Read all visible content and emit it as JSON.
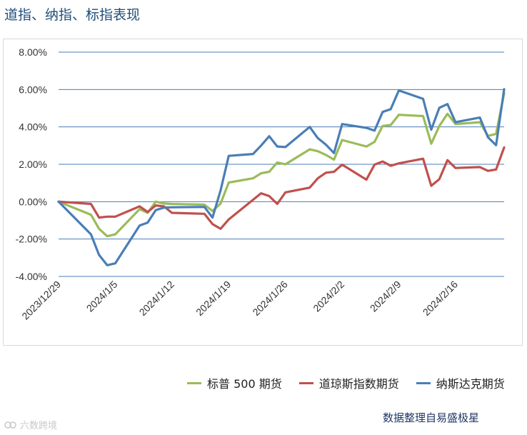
{
  "page": {
    "title": "道指、纳指、标指表现",
    "source_note": "数据整理自易盛极星",
    "watermark": "六数跨境"
  },
  "chart_data": {
    "type": "line",
    "title": "道指、纳指、标指表现",
    "xlabel": "",
    "ylabel": "",
    "ylim": [
      -0.04,
      0.08
    ],
    "yticks": [
      {
        "value": -0.04,
        "label": "-4.00%"
      },
      {
        "value": -0.02,
        "label": "-2.00%"
      },
      {
        "value": 0.0,
        "label": "0.00%"
      },
      {
        "value": 0.02,
        "label": "2.00%"
      },
      {
        "value": 0.04,
        "label": "4.00%"
      },
      {
        "value": 0.06,
        "label": "6.00%"
      },
      {
        "value": 0.08,
        "label": "8.00%"
      }
    ],
    "x_range": [
      "2023/12/29",
      "2024/2/22"
    ],
    "xticks": [
      "2023/12/29",
      "2024/1/5",
      "2024/1/12",
      "2024/1/19",
      "2024/1/26",
      "2024/2/2",
      "2024/2/9",
      "2024/2/16"
    ],
    "grid": true,
    "legend_position": "bottom",
    "series": [
      {
        "name": "标普 500 期货",
        "color": "#9bbb59",
        "points": [
          [
            "2023/12/29",
            0.0
          ],
          [
            "2024/1/2",
            -0.007
          ],
          [
            "2024/1/3",
            -0.0145
          ],
          [
            "2024/1/4",
            -0.0185
          ],
          [
            "2024/1/5",
            -0.0175
          ],
          [
            "2024/1/8",
            -0.004
          ],
          [
            "2024/1/9",
            -0.006
          ],
          [
            "2024/1/10",
            0.0
          ],
          [
            "2024/1/11",
            -0.001
          ],
          [
            "2024/1/12",
            -0.0012
          ],
          [
            "2024/1/16",
            -0.0016
          ],
          [
            "2024/1/17",
            -0.005
          ],
          [
            "2024/1/18",
            -0.001
          ],
          [
            "2024/1/19",
            0.0102
          ],
          [
            "2024/1/22",
            0.0125
          ],
          [
            "2024/1/23",
            0.0152
          ],
          [
            "2024/1/24",
            0.016
          ],
          [
            "2024/1/25",
            0.021
          ],
          [
            "2024/1/26",
            0.02
          ],
          [
            "2024/1/29",
            0.028
          ],
          [
            "2024/1/30",
            0.027
          ],
          [
            "2024/1/31",
            0.025
          ],
          [
            "2024/2/1",
            0.0225
          ],
          [
            "2024/2/2",
            0.033
          ],
          [
            "2024/2/5",
            0.0295
          ],
          [
            "2024/2/6",
            0.032
          ],
          [
            "2024/2/7",
            0.0405
          ],
          [
            "2024/2/8",
            0.041
          ],
          [
            "2024/2/9",
            0.0465
          ],
          [
            "2024/2/12",
            0.0458
          ],
          [
            "2024/2/13",
            0.031
          ],
          [
            "2024/2/14",
            0.0405
          ],
          [
            "2024/2/15",
            0.047
          ],
          [
            "2024/2/16",
            0.0415
          ],
          [
            "2024/2/19",
            0.0425
          ],
          [
            "2024/2/20",
            0.0352
          ],
          [
            "2024/2/21",
            0.0362
          ],
          [
            "2024/2/22",
            0.058
          ]
        ]
      },
      {
        "name": "道琼斯指数期货",
        "color": "#c0504d",
        "points": [
          [
            "2023/12/29",
            0.0
          ],
          [
            "2024/1/2",
            -0.0012
          ],
          [
            "2024/1/3",
            -0.0085
          ],
          [
            "2024/1/4",
            -0.008
          ],
          [
            "2024/1/5",
            -0.008
          ],
          [
            "2024/1/8",
            -0.0025
          ],
          [
            "2024/1/9",
            -0.0055
          ],
          [
            "2024/1/10",
            -0.002
          ],
          [
            "2024/1/11",
            -0.0025
          ],
          [
            "2024/1/12",
            -0.006
          ],
          [
            "2024/1/16",
            -0.0065
          ],
          [
            "2024/1/17",
            -0.012
          ],
          [
            "2024/1/18",
            -0.0145
          ],
          [
            "2024/1/19",
            -0.0095
          ],
          [
            "2024/1/22",
            0.001
          ],
          [
            "2024/1/23",
            0.0045
          ],
          [
            "2024/1/24",
            0.003
          ],
          [
            "2024/1/25",
            -0.0012
          ],
          [
            "2024/1/26",
            0.005
          ],
          [
            "2024/1/29",
            0.0075
          ],
          [
            "2024/1/30",
            0.0125
          ],
          [
            "2024/1/31",
            0.0155
          ],
          [
            "2024/2/1",
            0.016
          ],
          [
            "2024/2/2",
            0.0198
          ],
          [
            "2024/2/5",
            0.0118
          ],
          [
            "2024/2/6",
            0.0198
          ],
          [
            "2024/2/7",
            0.0215
          ],
          [
            "2024/2/8",
            0.0192
          ],
          [
            "2024/2/9",
            0.0205
          ],
          [
            "2024/2/12",
            0.023
          ],
          [
            "2024/2/13",
            0.0085
          ],
          [
            "2024/2/14",
            0.012
          ],
          [
            "2024/2/15",
            0.0222
          ],
          [
            "2024/2/16",
            0.018
          ],
          [
            "2024/2/19",
            0.0185
          ],
          [
            "2024/2/20",
            0.0165
          ],
          [
            "2024/2/21",
            0.0172
          ],
          [
            "2024/2/22",
            0.029
          ]
        ]
      },
      {
        "name": "纳斯达克期货",
        "color": "#4a7eb5",
        "points": [
          [
            "2023/12/29",
            0.0
          ],
          [
            "2024/1/2",
            -0.0175
          ],
          [
            "2024/1/3",
            -0.0285
          ],
          [
            "2024/1/4",
            -0.034
          ],
          [
            "2024/1/5",
            -0.033
          ],
          [
            "2024/1/8",
            -0.0128
          ],
          [
            "2024/1/9",
            -0.0112
          ],
          [
            "2024/1/10",
            -0.0045
          ],
          [
            "2024/1/11",
            -0.0032
          ],
          [
            "2024/1/12",
            -0.003
          ],
          [
            "2024/1/16",
            -0.0028
          ],
          [
            "2024/1/17",
            -0.0085
          ],
          [
            "2024/1/18",
            0.006
          ],
          [
            "2024/1/19",
            0.0245
          ],
          [
            "2024/1/22",
            0.0255
          ],
          [
            "2024/1/23",
            0.03
          ],
          [
            "2024/1/24",
            0.035
          ],
          [
            "2024/1/25",
            0.0295
          ],
          [
            "2024/1/26",
            0.0292
          ],
          [
            "2024/1/29",
            0.04
          ],
          [
            "2024/1/30",
            0.034
          ],
          [
            "2024/1/31",
            0.0305
          ],
          [
            "2024/2/1",
            0.026
          ],
          [
            "2024/2/2",
            0.0415
          ],
          [
            "2024/2/5",
            0.0395
          ],
          [
            "2024/2/6",
            0.038
          ],
          [
            "2024/2/7",
            0.048
          ],
          [
            "2024/2/8",
            0.0495
          ],
          [
            "2024/2/9",
            0.0595
          ],
          [
            "2024/2/12",
            0.055
          ],
          [
            "2024/2/13",
            0.0385
          ],
          [
            "2024/2/14",
            0.0502
          ],
          [
            "2024/2/15",
            0.0522
          ],
          [
            "2024/2/16",
            0.0425
          ],
          [
            "2024/2/19",
            0.045
          ],
          [
            "2024/2/20",
            0.0345
          ],
          [
            "2024/2/21",
            0.0302
          ],
          [
            "2024/2/22",
            0.0602
          ]
        ]
      }
    ]
  }
}
